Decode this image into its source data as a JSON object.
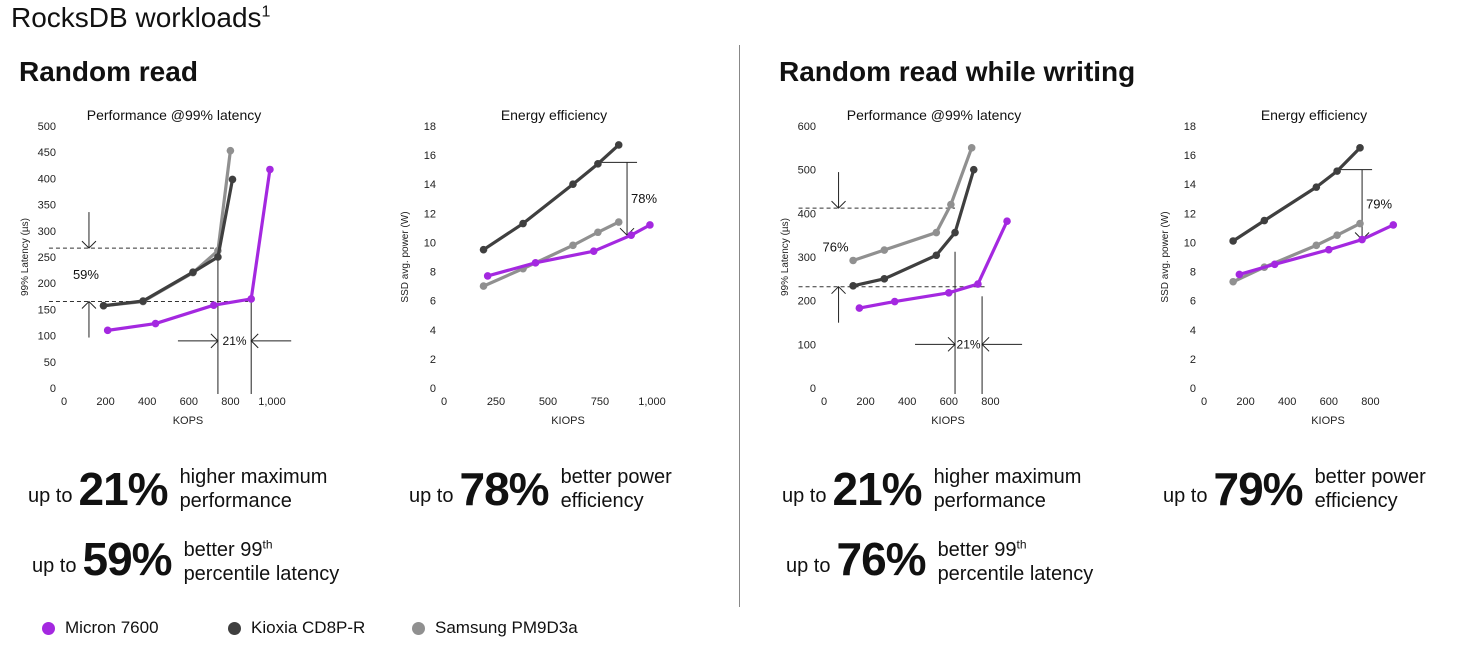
{
  "title": {
    "main": "RocksDB workloads",
    "sup": "1"
  },
  "colors": {
    "micron": "#a428e0",
    "kioxia": "#3f3f3f",
    "samsung": "#909090"
  },
  "legend": [
    {
      "name": "Micron 7600",
      "color": "#a428e0"
    },
    {
      "name": "Kioxia CD8P-R",
      "color": "#3f3f3f"
    },
    {
      "name": "Samsung PM9D3a",
      "color": "#909090"
    }
  ],
  "sections": [
    {
      "title": "Random read",
      "stats": [
        {
          "upto": "up to",
          "value": "21%",
          "line1": "higher maximum",
          "line2": "performance",
          "line1_sup": ""
        },
        {
          "upto": "up to",
          "value": "78%",
          "line1": "better power",
          "line2": "efficiency",
          "line1_sup": ""
        },
        {
          "upto": "up to",
          "value": "59%",
          "line1": "better 99",
          "line2": "percentile latency",
          "line1_sup": "th"
        }
      ]
    },
    {
      "title": "Random read while writing",
      "stats": [
        {
          "upto": "up to",
          "value": "21%",
          "line1": "higher maximum",
          "line2": "performance",
          "line1_sup": ""
        },
        {
          "upto": "up to",
          "value": "79%",
          "line1": "better power",
          "line2": "efficiency",
          "line1_sup": ""
        },
        {
          "upto": "up to",
          "value": "76%",
          "line1": "better 99",
          "line2": "percentile latency",
          "line1_sup": "th"
        }
      ]
    }
  ],
  "chart_data": [
    {
      "type": "line",
      "title": "Performance @99% latency",
      "xlabel": "KOPS",
      "ylabel": "99% Latency (µs)",
      "xlim": [
        0,
        1000
      ],
      "ylim": [
        0,
        500
      ],
      "xticks": [
        0,
        200,
        400,
        600,
        800,
        1000
      ],
      "xtick_labels": [
        "0",
        "200",
        "400",
        "600",
        "800",
        "1,000"
      ],
      "yticks": [
        0,
        50,
        100,
        150,
        200,
        250,
        300,
        350,
        400,
        450,
        500
      ],
      "ytick_labels": [
        "0",
        "50",
        "100",
        "150",
        "200",
        "250",
        "300",
        "350",
        "400",
        "450",
        "500"
      ],
      "series": [
        {
          "name": "Micron 7600",
          "color": "#a428e0",
          "points": [
            [
              210,
              110
            ],
            [
              440,
              123
            ],
            [
              720,
              158
            ],
            [
              900,
              170
            ],
            [
              990,
              417
            ]
          ]
        },
        {
          "name": "Kioxia CD8P-R",
          "color": "#3f3f3f",
          "points": [
            [
              190,
              157
            ],
            [
              380,
              166
            ],
            [
              620,
              221
            ],
            [
              740,
              250
            ],
            [
              810,
              398
            ]
          ]
        },
        {
          "name": "Samsung PM9D3a",
          "color": "#909090",
          "points": [
            [
              190,
              157
            ],
            [
              380,
              165
            ],
            [
              620,
              220
            ],
            [
              740,
              262
            ],
            [
              800,
              453
            ]
          ]
        }
      ],
      "annotations": [
        {
          "text": "59%",
          "kind": "vertical-gap",
          "x_line": 740,
          "y_top": 267,
          "y_bottom": 165,
          "x_left": 120
        },
        {
          "text": "21%",
          "kind": "horizontal-gap",
          "x_from": 740,
          "x_to": 900,
          "y_at": 90
        }
      ]
    },
    {
      "type": "line",
      "title": "Energy efficiency",
      "xlabel": "KIOPS",
      "ylabel": "SSD avg. power (W)",
      "xlim": [
        0,
        1000
      ],
      "ylim": [
        0,
        18
      ],
      "xticks": [
        0,
        250,
        500,
        750,
        1000
      ],
      "xtick_labels": [
        "0",
        "250",
        "500",
        "750",
        "1,000"
      ],
      "yticks": [
        0,
        2,
        4,
        6,
        8,
        10,
        12,
        14,
        16,
        18
      ],
      "ytick_labels": [
        "0",
        "2",
        "4",
        "6",
        "8",
        "10",
        "12",
        "14",
        "16",
        "18"
      ],
      "series": [
        {
          "name": "Micron 7600",
          "color": "#a428e0",
          "points": [
            [
              210,
              7.7
            ],
            [
              440,
              8.6
            ],
            [
              720,
              9.4
            ],
            [
              900,
              10.5
            ],
            [
              990,
              11.2
            ]
          ]
        },
        {
          "name": "Kioxia CD8P-R",
          "color": "#3f3f3f",
          "points": [
            [
              190,
              9.5
            ],
            [
              380,
              11.3
            ],
            [
              620,
              14.0
            ],
            [
              740,
              15.4
            ],
            [
              840,
              16.7
            ]
          ]
        },
        {
          "name": "Samsung PM9D3a",
          "color": "#909090",
          "points": [
            [
              190,
              7.0
            ],
            [
              380,
              8.2
            ],
            [
              620,
              9.8
            ],
            [
              740,
              10.7
            ],
            [
              840,
              11.4
            ]
          ]
        }
      ],
      "annotations": [
        {
          "text": "78%",
          "kind": "vertical-bracket",
          "x_line": 880,
          "y_top": 15.5,
          "y_bottom": 10.5
        }
      ]
    },
    {
      "type": "line",
      "title": "Performance @99% latency",
      "xlabel": "KIOPS",
      "ylabel": "99% Latency (µs)",
      "xlim": [
        0,
        1000
      ],
      "ylim": [
        0,
        600
      ],
      "xticks": [
        0,
        200,
        400,
        600,
        800
      ],
      "xtick_labels": [
        "0",
        "200",
        "400",
        "600",
        "800"
      ],
      "yticks": [
        0,
        100,
        200,
        300,
        400,
        500,
        600
      ],
      "ytick_labels": [
        "0",
        "100",
        "200",
        "300",
        "400",
        "500",
        "600"
      ],
      "series": [
        {
          "name": "Micron 7600",
          "color": "#a428e0",
          "points": [
            [
              170,
              183
            ],
            [
              340,
              198
            ],
            [
              600,
              218
            ],
            [
              740,
              238
            ],
            [
              880,
              382
            ]
          ]
        },
        {
          "name": "Kioxia CD8P-R",
          "color": "#3f3f3f",
          "points": [
            [
              140,
              234
            ],
            [
              290,
              250
            ],
            [
              540,
              304
            ],
            [
              630,
              356
            ],
            [
              720,
              500
            ]
          ]
        },
        {
          "name": "Samsung PM9D3a",
          "color": "#909090",
          "points": [
            [
              140,
              292
            ],
            [
              290,
              316
            ],
            [
              540,
              356
            ],
            [
              610,
              420
            ],
            [
              710,
              550
            ]
          ]
        }
      ],
      "annotations": [
        {
          "text": "76%",
          "kind": "vertical-gap",
          "x_line": 630,
          "y_top": 412,
          "y_bottom": 232,
          "x_left": 70
        },
        {
          "text": "21%",
          "kind": "horizontal-gap",
          "x_from": 630,
          "x_to": 760,
          "y_at": 100
        }
      ]
    },
    {
      "type": "line",
      "title": "Energy efficiency",
      "xlabel": "KIOPS",
      "ylabel": "SSD avg. power (W)",
      "xlim": [
        0,
        1000
      ],
      "ylim": [
        0,
        18
      ],
      "xticks": [
        0,
        200,
        400,
        600,
        800
      ],
      "xtick_labels": [
        "0",
        "200",
        "400",
        "600",
        "800"
      ],
      "yticks": [
        0,
        2,
        4,
        6,
        8,
        10,
        12,
        14,
        16,
        18
      ],
      "ytick_labels": [
        "0",
        "2",
        "4",
        "6",
        "8",
        "10",
        "12",
        "14",
        "16",
        "18"
      ],
      "series": [
        {
          "name": "Micron 7600",
          "color": "#a428e0",
          "points": [
            [
              170,
              7.8
            ],
            [
              340,
              8.5
            ],
            [
              600,
              9.5
            ],
            [
              760,
              10.2
            ],
            [
              910,
              11.2
            ]
          ]
        },
        {
          "name": "Kioxia CD8P-R",
          "color": "#3f3f3f",
          "points": [
            [
              140,
              10.1
            ],
            [
              290,
              11.5
            ],
            [
              540,
              13.8
            ],
            [
              640,
              14.9
            ],
            [
              750,
              16.5
            ]
          ]
        },
        {
          "name": "Samsung PM9D3a",
          "color": "#909090",
          "points": [
            [
              140,
              7.3
            ],
            [
              290,
              8.3
            ],
            [
              540,
              9.8
            ],
            [
              640,
              10.5
            ],
            [
              750,
              11.3
            ]
          ]
        }
      ],
      "annotations": [
        {
          "text": "79%",
          "kind": "vertical-bracket",
          "x_line": 760,
          "y_top": 15.0,
          "y_bottom": 10.2
        }
      ]
    }
  ]
}
